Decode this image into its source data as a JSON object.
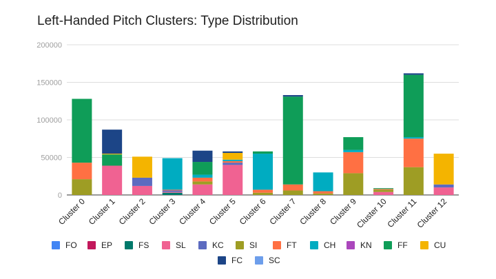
{
  "chart_data": {
    "type": "bar",
    "stacked": true,
    "title": "Left-Handed Pitch Clusters: Type Distribution",
    "xlabel": "",
    "ylabel": "",
    "ylim": [
      0,
      200000
    ],
    "yticks": [
      0,
      50000,
      100000,
      150000,
      200000
    ],
    "ytick_labels": [
      "0",
      "50000",
      "100000",
      "150000",
      "200000"
    ],
    "grid": true,
    "legend_position": "bottom",
    "categories": [
      "Cluster 0",
      "Cluster 1",
      "Cluster 2",
      "Cluster 3",
      "Cluster 4",
      "Cluster 5",
      "Cluster 6",
      "Cluster 7",
      "Cluster 8",
      "Cluster 9",
      "Cluster 10",
      "Cluster 11",
      "Cluster 12"
    ],
    "series": [
      {
        "name": "FO",
        "color": "#4285f4",
        "values": [
          0,
          0,
          0,
          0,
          0,
          0,
          0,
          0,
          0,
          0,
          0,
          0,
          0
        ]
      },
      {
        "name": "EP",
        "color": "#c2185b",
        "values": [
          0,
          0,
          0,
          0,
          0,
          0,
          0,
          0,
          0,
          0,
          0,
          0,
          0
        ]
      },
      {
        "name": "FS",
        "color": "#00796b",
        "values": [
          0,
          0,
          0,
          3000,
          0,
          0,
          0,
          0,
          0,
          0,
          0,
          0,
          0
        ]
      },
      {
        "name": "SL",
        "color": "#f06292",
        "values": [
          0,
          39000,
          12000,
          1000,
          14000,
          40000,
          0,
          0,
          0,
          0,
          4000,
          0,
          10000
        ]
      },
      {
        "name": "KC",
        "color": "#5c6bc0",
        "values": [
          0,
          0,
          11000,
          2000,
          0,
          3000,
          0,
          0,
          0,
          0,
          0,
          0,
          4000
        ]
      },
      {
        "name": "SI",
        "color": "#9e9d24",
        "values": [
          21000,
          0,
          0,
          0,
          4000,
          0,
          3000,
          6000,
          2000,
          29000,
          3000,
          37000,
          0
        ]
      },
      {
        "name": "FT",
        "color": "#ff7043",
        "values": [
          22000,
          0,
          0,
          1000,
          5000,
          2000,
          4000,
          8000,
          3000,
          28000,
          1000,
          38000,
          0
        ]
      },
      {
        "name": "CH",
        "color": "#00acc1",
        "values": [
          0,
          0,
          0,
          42000,
          4000,
          2000,
          48000,
          0,
          25000,
          3000,
          0,
          2000,
          0
        ]
      },
      {
        "name": "KN",
        "color": "#ab47bc",
        "values": [
          0,
          0,
          0,
          0,
          0,
          0,
          0,
          0,
          0,
          0,
          0,
          0,
          0
        ]
      },
      {
        "name": "FF",
        "color": "#0f9d58",
        "values": [
          85000,
          15000,
          0,
          0,
          17000,
          0,
          3000,
          117000,
          0,
          17000,
          1000,
          83000,
          0
        ]
      },
      {
        "name": "CU",
        "color": "#f4b400",
        "values": [
          0,
          1000,
          28000,
          0,
          0,
          9000,
          0,
          0,
          0,
          0,
          0,
          0,
          41000
        ]
      },
      {
        "name": "FC",
        "color": "#1c4587",
        "values": [
          0,
          32000,
          0,
          0,
          15000,
          2000,
          0,
          2000,
          0,
          0,
          0,
          2000,
          0
        ]
      },
      {
        "name": "SC",
        "color": "#6d9eeb",
        "values": [
          0,
          0,
          0,
          0,
          0,
          0,
          0,
          0,
          0,
          0,
          0,
          0,
          0
        ]
      }
    ]
  }
}
